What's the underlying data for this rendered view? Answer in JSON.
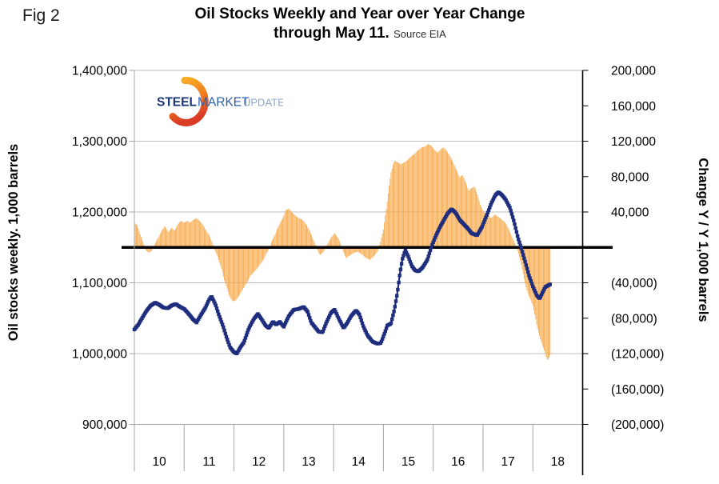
{
  "header": {
    "fig_label": "Fig 2",
    "title_line1": "Oil Stocks Weekly and Year over Year Change",
    "title_line2": "through May 11.",
    "source": "Source EIA"
  },
  "logo": {
    "steel": "STEEL",
    "market": "MARKET",
    "update": "UPDATE"
  },
  "colors": {
    "bar_orange": "#F7A643",
    "line_navy": "#1F2D7E",
    "gridline_gray": "#BFBFBF",
    "axis_gray": "#A6A6A6",
    "zero_line_black": "#000000",
    "logo_steel": "#16366F",
    "logo_market": "#2C5FA8",
    "logo_update": "#8CA6C6"
  },
  "chart_data": {
    "type": "combo",
    "title": "Oil Stocks Weekly and Year over Year Change through May 11. Source EIA",
    "x_axis": {
      "year_labels": [
        "10",
        "11",
        "12",
        "13",
        "14",
        "15",
        "16",
        "17",
        "18"
      ],
      "start_year": 2010,
      "end_year_fraction": 2018.352
    },
    "left_axis": {
      "label": "Oil stocks weekly. 1,000 barrels",
      "min": 900000,
      "max": 1400000,
      "ticks": [
        {
          "label": "1,400,000",
          "value": 1400000
        },
        {
          "label": "1,300,000",
          "value": 1300000
        },
        {
          "label": "1,200,000",
          "value": 1200000
        },
        {
          "label": "1,100,000",
          "value": 1100000
        },
        {
          "label": "1,000,000",
          "value": 1000000
        },
        {
          "label": "900,000",
          "value": 900000
        }
      ]
    },
    "right_axis": {
      "label": "Change Y / Y 1,000 barrels",
      "min": -200000,
      "max": 200000,
      "tick_step": 40000,
      "ticks": [
        {
          "label": "200,000",
          "value": 200000
        },
        {
          "label": "160,000",
          "value": 160000
        },
        {
          "label": "120,000",
          "value": 120000
        },
        {
          "label": "80,000",
          "value": 80000
        },
        {
          "label": "40,000",
          "value": 40000
        },
        {
          "label": "(40,000)",
          "value": -40000
        },
        {
          "label": "(80,000)",
          "value": -80000
        },
        {
          "label": "(120,000)",
          "value": -120000
        },
        {
          "label": "(160,000)",
          "value": -160000
        },
        {
          "label": "(200,000)",
          "value": -200000
        }
      ]
    },
    "zero_baseline": {
      "axis": "right",
      "value": 0
    },
    "sampling_per_year": 52,
    "series": [
      {
        "name": "Oil stocks weekly",
        "type": "line",
        "axis": "left",
        "color": "#1F2D7E",
        "keypoints": [
          [
            2010.0,
            1034000
          ],
          [
            2010.08,
            1041000
          ],
          [
            2010.17,
            1052000
          ],
          [
            2010.25,
            1061000
          ],
          [
            2010.33,
            1068000
          ],
          [
            2010.42,
            1072000
          ],
          [
            2010.5,
            1069000
          ],
          [
            2010.58,
            1065000
          ],
          [
            2010.67,
            1064000
          ],
          [
            2010.75,
            1068000
          ],
          [
            2010.83,
            1070000
          ],
          [
            2010.92,
            1066000
          ],
          [
            2011.0,
            1063000
          ],
          [
            2011.08,
            1057000
          ],
          [
            2011.17,
            1049000
          ],
          [
            2011.25,
            1044000
          ],
          [
            2011.33,
            1054000
          ],
          [
            2011.42,
            1064000
          ],
          [
            2011.5,
            1076000
          ],
          [
            2011.55,
            1081000
          ],
          [
            2011.63,
            1069000
          ],
          [
            2011.7,
            1054000
          ],
          [
            2011.78,
            1039000
          ],
          [
            2011.85,
            1023000
          ],
          [
            2011.92,
            1009000
          ],
          [
            2012.0,
            1002000
          ],
          [
            2012.06,
            1000000
          ],
          [
            2012.12,
            1008000
          ],
          [
            2012.2,
            1016000
          ],
          [
            2012.3,
            1036000
          ],
          [
            2012.4,
            1049000
          ],
          [
            2012.48,
            1056000
          ],
          [
            2012.55,
            1049000
          ],
          [
            2012.63,
            1040000
          ],
          [
            2012.7,
            1036000
          ],
          [
            2012.78,
            1045000
          ],
          [
            2012.85,
            1041000
          ],
          [
            2012.92,
            1045000
          ],
          [
            2013.0,
            1038000
          ],
          [
            2013.1,
            1053000
          ],
          [
            2013.2,
            1062000
          ],
          [
            2013.3,
            1063000
          ],
          [
            2013.4,
            1066000
          ],
          [
            2013.48,
            1059000
          ],
          [
            2013.55,
            1044000
          ],
          [
            2013.63,
            1037000
          ],
          [
            2013.7,
            1031000
          ],
          [
            2013.78,
            1030000
          ],
          [
            2013.85,
            1043000
          ],
          [
            2013.95,
            1058000
          ],
          [
            2014.02,
            1062000
          ],
          [
            2014.1,
            1050000
          ],
          [
            2014.2,
            1036000
          ],
          [
            2014.28,
            1044000
          ],
          [
            2014.35,
            1053000
          ],
          [
            2014.45,
            1061000
          ],
          [
            2014.52,
            1055000
          ],
          [
            2014.6,
            1038000
          ],
          [
            2014.68,
            1026000
          ],
          [
            2014.78,
            1017000
          ],
          [
            2014.88,
            1014000
          ],
          [
            2014.95,
            1015000
          ],
          [
            2015.02,
            1028000
          ],
          [
            2015.08,
            1040000
          ],
          [
            2015.15,
            1042000
          ],
          [
            2015.22,
            1062000
          ],
          [
            2015.28,
            1086000
          ],
          [
            2015.33,
            1112000
          ],
          [
            2015.38,
            1133000
          ],
          [
            2015.44,
            1146000
          ],
          [
            2015.5,
            1137000
          ],
          [
            2015.57,
            1124000
          ],
          [
            2015.63,
            1118000
          ],
          [
            2015.7,
            1116000
          ],
          [
            2015.78,
            1121000
          ],
          [
            2015.88,
            1132000
          ],
          [
            2015.97,
            1152000
          ],
          [
            2016.05,
            1166000
          ],
          [
            2016.13,
            1178000
          ],
          [
            2016.21,
            1188000
          ],
          [
            2016.29,
            1198000
          ],
          [
            2016.37,
            1204000
          ],
          [
            2016.45,
            1199000
          ],
          [
            2016.53,
            1189000
          ],
          [
            2016.61,
            1183000
          ],
          [
            2016.69,
            1177000
          ],
          [
            2016.77,
            1170000
          ],
          [
            2016.88,
            1167000
          ],
          [
            2016.98,
            1179000
          ],
          [
            2017.09,
            1198000
          ],
          [
            2017.17,
            1213000
          ],
          [
            2017.25,
            1224000
          ],
          [
            2017.31,
            1228000
          ],
          [
            2017.38,
            1224000
          ],
          [
            2017.45,
            1218000
          ],
          [
            2017.54,
            1206000
          ],
          [
            2017.62,
            1187000
          ],
          [
            2017.7,
            1164000
          ],
          [
            2017.78,
            1146000
          ],
          [
            2017.85,
            1129000
          ],
          [
            2017.92,
            1111000
          ],
          [
            2018.0,
            1095000
          ],
          [
            2018.08,
            1082000
          ],
          [
            2018.14,
            1078000
          ],
          [
            2018.2,
            1087000
          ],
          [
            2018.25,
            1094000
          ],
          [
            2018.3,
            1096000
          ],
          [
            2018.35,
            1098000
          ]
        ]
      },
      {
        "name": "Change year over year",
        "type": "bar",
        "axis": "right",
        "color": "#F7A643",
        "keypoints": [
          [
            2010.0,
            28000
          ],
          [
            2010.06,
            25000
          ],
          [
            2010.12,
            14000
          ],
          [
            2010.18,
            5000
          ],
          [
            2010.23,
            -3000
          ],
          [
            2010.29,
            -6000
          ],
          [
            2010.35,
            -4000
          ],
          [
            2010.42,
            5000
          ],
          [
            2010.5,
            13000
          ],
          [
            2010.56,
            20000
          ],
          [
            2010.62,
            24000
          ],
          [
            2010.68,
            17000
          ],
          [
            2010.75,
            22000
          ],
          [
            2010.81,
            19000
          ],
          [
            2010.87,
            26000
          ],
          [
            2010.93,
            30000
          ],
          [
            2011.0,
            28000
          ],
          [
            2011.06,
            30000
          ],
          [
            2011.12,
            28000
          ],
          [
            2011.18,
            31000
          ],
          [
            2011.25,
            33000
          ],
          [
            2011.31,
            30000
          ],
          [
            2011.37,
            26000
          ],
          [
            2011.43,
            20000
          ],
          [
            2011.5,
            14000
          ],
          [
            2011.56,
            6000
          ],
          [
            2011.61,
            -2000
          ],
          [
            2011.66,
            -9000
          ],
          [
            2011.71,
            -17000
          ],
          [
            2011.76,
            -26000
          ],
          [
            2011.81,
            -38000
          ],
          [
            2011.86,
            -46000
          ],
          [
            2011.91,
            -55000
          ],
          [
            2011.96,
            -60000
          ],
          [
            2012.01,
            -61000
          ],
          [
            2012.06,
            -58000
          ],
          [
            2012.11,
            -54000
          ],
          [
            2012.16,
            -49000
          ],
          [
            2012.21,
            -44000
          ],
          [
            2012.27,
            -39000
          ],
          [
            2012.32,
            -33000
          ],
          [
            2012.38,
            -29000
          ],
          [
            2012.43,
            -26000
          ],
          [
            2012.49,
            -22000
          ],
          [
            2012.54,
            -18000
          ],
          [
            2012.6,
            -13000
          ],
          [
            2012.65,
            -7000
          ],
          [
            2012.71,
            -1000
          ],
          [
            2012.76,
            7000
          ],
          [
            2012.82,
            14000
          ],
          [
            2012.87,
            21000
          ],
          [
            2012.93,
            28000
          ],
          [
            2012.98,
            33000
          ],
          [
            2013.04,
            42000
          ],
          [
            2013.1,
            44000
          ],
          [
            2013.16,
            40000
          ],
          [
            2013.23,
            36000
          ],
          [
            2013.3,
            33000
          ],
          [
            2013.38,
            31000
          ],
          [
            2013.45,
            26000
          ],
          [
            2013.52,
            19000
          ],
          [
            2013.59,
            9000
          ],
          [
            2013.65,
            1000
          ],
          [
            2013.72,
            -9000
          ],
          [
            2013.8,
            -5000
          ],
          [
            2013.88,
            4000
          ],
          [
            2013.95,
            11000
          ],
          [
            2014.02,
            16000
          ],
          [
            2014.1,
            10000
          ],
          [
            2014.18,
            -3000
          ],
          [
            2014.25,
            -12000
          ],
          [
            2014.33,
            -9000
          ],
          [
            2014.41,
            -6000
          ],
          [
            2014.49,
            -5000
          ],
          [
            2014.57,
            -8000
          ],
          [
            2014.65,
            -12000
          ],
          [
            2014.73,
            -14000
          ],
          [
            2014.81,
            -10000
          ],
          [
            2014.88,
            -5000
          ],
          [
            2014.94,
            6000
          ],
          [
            2015.0,
            20000
          ],
          [
            2015.03,
            33000
          ],
          [
            2015.07,
            48000
          ],
          [
            2015.11,
            68000
          ],
          [
            2015.15,
            84000
          ],
          [
            2015.19,
            93000
          ],
          [
            2015.23,
            98000
          ],
          [
            2015.29,
            96000
          ],
          [
            2015.35,
            94000
          ],
          [
            2015.42,
            96000
          ],
          [
            2015.49,
            99000
          ],
          [
            2015.56,
            103000
          ],
          [
            2015.63,
            106000
          ],
          [
            2015.7,
            110000
          ],
          [
            2015.77,
            113000
          ],
          [
            2015.84,
            114000
          ],
          [
            2015.9,
            117000
          ],
          [
            2015.96,
            115000
          ],
          [
            2016.03,
            110000
          ],
          [
            2016.09,
            107000
          ],
          [
            2016.15,
            111000
          ],
          [
            2016.21,
            113000
          ],
          [
            2016.27,
            109000
          ],
          [
            2016.33,
            104000
          ],
          [
            2016.4,
            96000
          ],
          [
            2016.47,
            87000
          ],
          [
            2016.53,
            79000
          ],
          [
            2016.59,
            82000
          ],
          [
            2016.65,
            74000
          ],
          [
            2016.71,
            64000
          ],
          [
            2016.77,
            67000
          ],
          [
            2016.83,
            69000
          ],
          [
            2016.89,
            59000
          ],
          [
            2016.95,
            47000
          ],
          [
            2017.02,
            40000
          ],
          [
            2017.09,
            36000
          ],
          [
            2017.16,
            33000
          ],
          [
            2017.23,
            37000
          ],
          [
            2017.3,
            35000
          ],
          [
            2017.38,
            31000
          ],
          [
            2017.45,
            28000
          ],
          [
            2017.52,
            20000
          ],
          [
            2017.59,
            11000
          ],
          [
            2017.65,
            3000
          ],
          [
            2017.7,
            -5000
          ],
          [
            2017.75,
            -15000
          ],
          [
            2017.8,
            -28000
          ],
          [
            2017.85,
            -42000
          ],
          [
            2017.9,
            -52000
          ],
          [
            2017.95,
            -58000
          ],
          [
            2018.0,
            -66000
          ],
          [
            2018.04,
            -76000
          ],
          [
            2018.08,
            -88000
          ],
          [
            2018.12,
            -97000
          ],
          [
            2018.16,
            -105000
          ],
          [
            2018.2,
            -112000
          ],
          [
            2018.24,
            -118000
          ],
          [
            2018.27,
            -124000
          ],
          [
            2018.3,
            -128000
          ],
          [
            2018.33,
            -124000
          ],
          [
            2018.35,
            -121000
          ]
        ]
      }
    ]
  }
}
